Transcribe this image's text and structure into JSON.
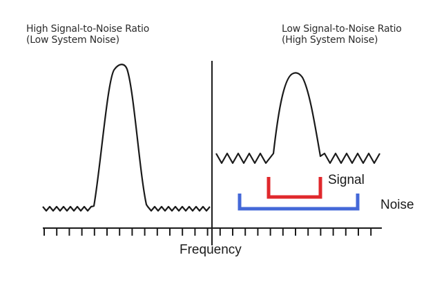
{
  "left_panel": {
    "title_line1": "High Signal-to-Noise Ratio",
    "title_line2": "(Low System Noise)"
  },
  "right_panel": {
    "title_line1": "Low Signal-to-Noise Ratio",
    "title_line2": "(High System Noise)"
  },
  "axis": {
    "label": "Frequency"
  },
  "legend": {
    "signal_label": "Signal",
    "noise_label": "Noise"
  },
  "colors": {
    "curve": "#1a1a1a",
    "signal_bracket": "#e0282c",
    "noise_bracket": "#4468d8"
  }
}
